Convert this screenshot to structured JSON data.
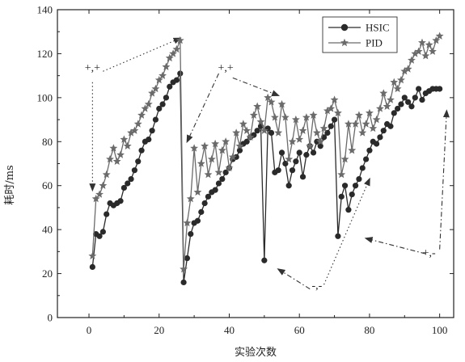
{
  "chart_data": {
    "type": "line",
    "xlabel": "实验次数",
    "ylabel": "耗时/ms",
    "xlim": [
      -9,
      104
    ],
    "ylim": [
      0,
      140
    ],
    "xticks": [
      0,
      20,
      40,
      60,
      80,
      100
    ],
    "yticks": [
      0,
      20,
      40,
      60,
      80,
      100,
      120,
      140
    ],
    "legend_position": "top-right",
    "series": [
      {
        "name": "HSIC",
        "color": "#2a2a2a",
        "marker": "circle",
        "x": [
          1,
          2,
          3,
          4,
          5,
          6,
          7,
          8,
          9,
          10,
          11,
          12,
          13,
          14,
          15,
          16,
          17,
          18,
          19,
          20,
          21,
          22,
          23,
          24,
          25,
          26,
          27,
          28,
          29,
          30,
          31,
          32,
          33,
          34,
          35,
          36,
          37,
          38,
          39,
          40,
          41,
          42,
          43,
          44,
          45,
          46,
          47,
          48,
          49,
          50,
          51,
          52,
          53,
          54,
          55,
          56,
          57,
          58,
          59,
          60,
          61,
          62,
          63,
          64,
          65,
          66,
          67,
          68,
          69,
          70,
          71,
          72,
          73,
          74,
          75,
          76,
          77,
          78,
          79,
          80,
          81,
          82,
          83,
          84,
          85,
          86,
          87,
          88,
          89,
          90,
          91,
          92,
          93,
          94,
          95,
          96,
          97,
          98,
          99,
          100
        ],
        "values": [
          23,
          38,
          37,
          39,
          47,
          52,
          51,
          52,
          53,
          59,
          61,
          63,
          67,
          71,
          76,
          80,
          81,
          85,
          90,
          95,
          97,
          100,
          105,
          107,
          108,
          111,
          16,
          27,
          38,
          43,
          44,
          48,
          52,
          55,
          57,
          58,
          61,
          63,
          66,
          68,
          72,
          73,
          76,
          79,
          80,
          82,
          83,
          85,
          87,
          26,
          86,
          84,
          66,
          67,
          75,
          70,
          60,
          67,
          71,
          75,
          64,
          74,
          78,
          75,
          80,
          78,
          82,
          84,
          87,
          90,
          37,
          55,
          60,
          49,
          56,
          60,
          63,
          68,
          72,
          76,
          80,
          79,
          82,
          85,
          88,
          87,
          93,
          95,
          97,
          100,
          98,
          96,
          100,
          104,
          99,
          102,
          103,
          104,
          104,
          104
        ]
      },
      {
        "name": "PID",
        "color": "#6b6b6b",
        "marker": "star",
        "x": [
          1,
          2,
          3,
          4,
          5,
          6,
          7,
          8,
          9,
          10,
          11,
          12,
          13,
          14,
          15,
          16,
          17,
          18,
          19,
          20,
          21,
          22,
          23,
          24,
          25,
          26,
          27,
          28,
          29,
          30,
          31,
          32,
          33,
          34,
          35,
          36,
          37,
          38,
          39,
          40,
          41,
          42,
          43,
          44,
          45,
          46,
          47,
          48,
          49,
          50,
          51,
          52,
          53,
          54,
          55,
          56,
          57,
          58,
          59,
          60,
          61,
          62,
          63,
          64,
          65,
          66,
          67,
          68,
          69,
          70,
          71,
          72,
          73,
          74,
          75,
          76,
          77,
          78,
          79,
          80,
          81,
          82,
          83,
          84,
          85,
          86,
          87,
          88,
          89,
          90,
          91,
          92,
          93,
          94,
          95,
          96,
          97,
          98,
          99,
          100
        ],
        "values": [
          28,
          54,
          56,
          60,
          65,
          72,
          77,
          71,
          74,
          81,
          78,
          84,
          85,
          88,
          92,
          95,
          97,
          102,
          104,
          108,
          110,
          114,
          118,
          120,
          122,
          126,
          22,
          43,
          54,
          77,
          57,
          70,
          78,
          65,
          72,
          79,
          66,
          76,
          80,
          68,
          73,
          84,
          78,
          88,
          85,
          82,
          92,
          96,
          89,
          85,
          100,
          98,
          91,
          84,
          97,
          91,
          72,
          80,
          90,
          81,
          85,
          91,
          78,
          92,
          84,
          80,
          86,
          94,
          95,
          99,
          93,
          65,
          72,
          88,
          76,
          88,
          92,
          84,
          88,
          93,
          86,
          90,
          95,
          102,
          96,
          99,
          107,
          104,
          108,
          112,
          113,
          117,
          120,
          121,
          125,
          119,
          124,
          121,
          126,
          128
        ]
      }
    ],
    "annotations": [
      {
        "label": "+,+",
        "x": 1,
        "y": 112
      },
      {
        "label": "+,+",
        "x": 39,
        "y": 112
      },
      {
        "label": "-,-",
        "x": 65,
        "y": 13
      },
      {
        "label": "+,-",
        "x": 97,
        "y": 28
      }
    ]
  }
}
